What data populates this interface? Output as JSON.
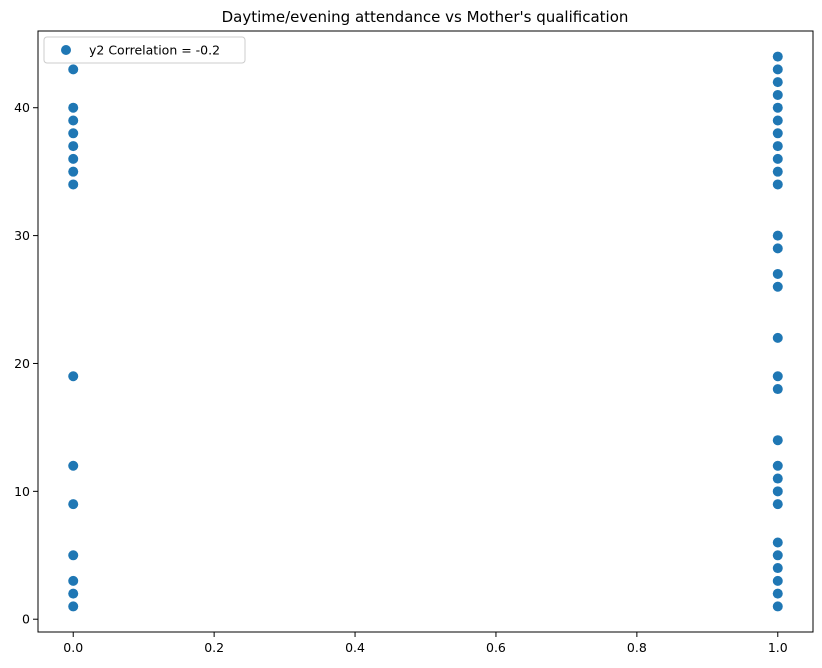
{
  "chart_data": {
    "type": "scatter",
    "title": "Daytime/evening attendance\t vs Mother's qualification",
    "xlabel": "",
    "ylabel": "",
    "xlim": [
      -0.05,
      1.05
    ],
    "ylim": [
      -1,
      46
    ],
    "x_ticks": [
      "0.0",
      "0.2",
      "0.4",
      "0.6",
      "0.8",
      "1.0"
    ],
    "y_ticks": [
      "0",
      "10",
      "20",
      "30",
      "40"
    ],
    "grid": false,
    "legend_position": "top-left",
    "marker_color": "#1f77b4",
    "series": [
      {
        "name": "y2 Correlation = -0.2",
        "points": [
          [
            0,
            1
          ],
          [
            0,
            2
          ],
          [
            0,
            3
          ],
          [
            0,
            5
          ],
          [
            0,
            9
          ],
          [
            0,
            12
          ],
          [
            0,
            19
          ],
          [
            0,
            34
          ],
          [
            0,
            35
          ],
          [
            0,
            36
          ],
          [
            0,
            37
          ],
          [
            0,
            38
          ],
          [
            0,
            39
          ],
          [
            0,
            40
          ],
          [
            0,
            43
          ],
          [
            1,
            1
          ],
          [
            1,
            2
          ],
          [
            1,
            3
          ],
          [
            1,
            4
          ],
          [
            1,
            5
          ],
          [
            1,
            6
          ],
          [
            1,
            9
          ],
          [
            1,
            10
          ],
          [
            1,
            11
          ],
          [
            1,
            12
          ],
          [
            1,
            14
          ],
          [
            1,
            18
          ],
          [
            1,
            19
          ],
          [
            1,
            22
          ],
          [
            1,
            26
          ],
          [
            1,
            27
          ],
          [
            1,
            29
          ],
          [
            1,
            30
          ],
          [
            1,
            34
          ],
          [
            1,
            35
          ],
          [
            1,
            36
          ],
          [
            1,
            37
          ],
          [
            1,
            38
          ],
          [
            1,
            39
          ],
          [
            1,
            40
          ],
          [
            1,
            41
          ],
          [
            1,
            42
          ],
          [
            1,
            43
          ],
          [
            1,
            44
          ]
        ]
      }
    ]
  }
}
